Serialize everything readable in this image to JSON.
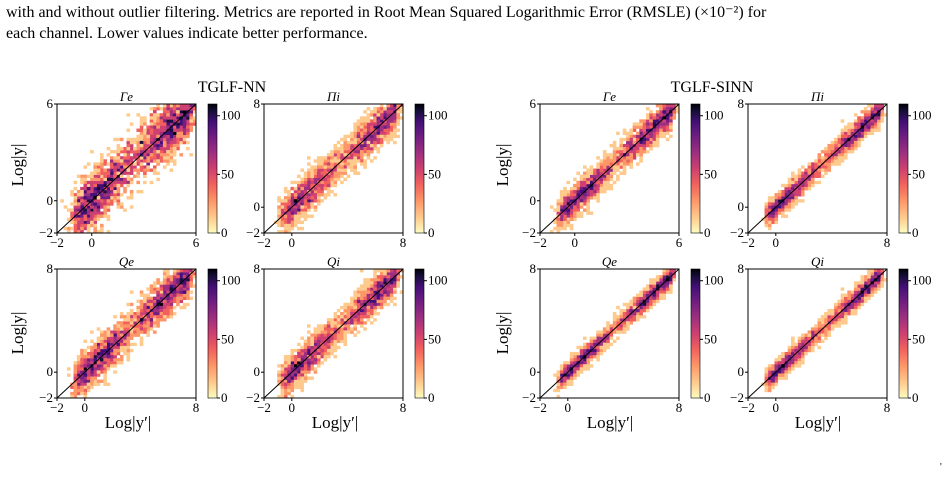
{
  "caption": {
    "line1": "with and without outlier filtering. Metrics are reported in Root Mean Squared Logarithmic Error (RMSLE) (×10⁻²) for",
    "line2": "each channel. Lower values indicate better performance."
  },
  "figure": {
    "groups": [
      {
        "title": "TGLF-NN",
        "ylabel": "Log|y|",
        "xlabel": "Log|y′|",
        "panels": [
          {
            "title": "Γe",
            "max": 6,
            "xticks": [
              "−2",
              "0",
              "6"
            ],
            "yticks": [
              "6",
              "0",
              "−2"
            ],
            "cbticks": [
              "100",
              "50",
              "0"
            ],
            "spread": 1.0
          },
          {
            "title": "Πi",
            "max": 8,
            "xticks": [
              "−2",
              "0",
              "8"
            ],
            "yticks": [
              "8",
              "0",
              "−2"
            ],
            "cbticks": [
              "100",
              "50",
              "0"
            ],
            "spread": 0.85
          },
          {
            "title": "Qe",
            "max": 8,
            "xticks": [
              "−2",
              "0",
              "8"
            ],
            "yticks": [
              "8",
              "0",
              "−2"
            ],
            "cbticks": [
              "100",
              "50",
              "0"
            ],
            "spread": 0.85
          },
          {
            "title": "Qi",
            "max": 8,
            "xticks": [
              "−2",
              "0",
              "8"
            ],
            "yticks": [
              "8",
              "0",
              "−2"
            ],
            "cbticks": [
              "100",
              "50",
              "0"
            ],
            "spread": 0.75
          }
        ]
      },
      {
        "title": "TGLF-SINN",
        "ylabel": "Log|y|",
        "xlabel": "Log|y′|",
        "panels": [
          {
            "title": "Γe",
            "max": 6,
            "xticks": [
              "−2",
              "0",
              "6"
            ],
            "yticks": [
              "6",
              "0",
              "−2"
            ],
            "cbticks": [
              "100",
              "50",
              "0"
            ],
            "spread": 0.55
          },
          {
            "title": "Πi",
            "max": 8,
            "xticks": [
              "−2",
              "0",
              "8"
            ],
            "yticks": [
              "8",
              "0",
              "−2"
            ],
            "cbticks": [
              "100",
              "50",
              "0"
            ],
            "spread": 0.5
          },
          {
            "title": "Qe",
            "max": 8,
            "xticks": [
              "−2",
              "0",
              "8"
            ],
            "yticks": [
              "8",
              "0",
              "−2"
            ],
            "cbticks": [
              "100",
              "50",
              "0"
            ],
            "spread": 0.45
          },
          {
            "title": "Qi",
            "max": 8,
            "xticks": [
              "−2",
              "0",
              "8"
            ],
            "yticks": [
              "8",
              "0",
              "−2"
            ],
            "cbticks": [
              "100",
              "50",
              "0"
            ],
            "spread": 0.45
          }
        ]
      }
    ],
    "colormap": [
      "#fcfdbf",
      "#feca8d",
      "#fd9668",
      "#f1605d",
      "#cd4071",
      "#9e2f7f",
      "#721f81",
      "#440f76",
      "#180f3d",
      "#000004"
    ]
  },
  "page_mark": "'"
}
